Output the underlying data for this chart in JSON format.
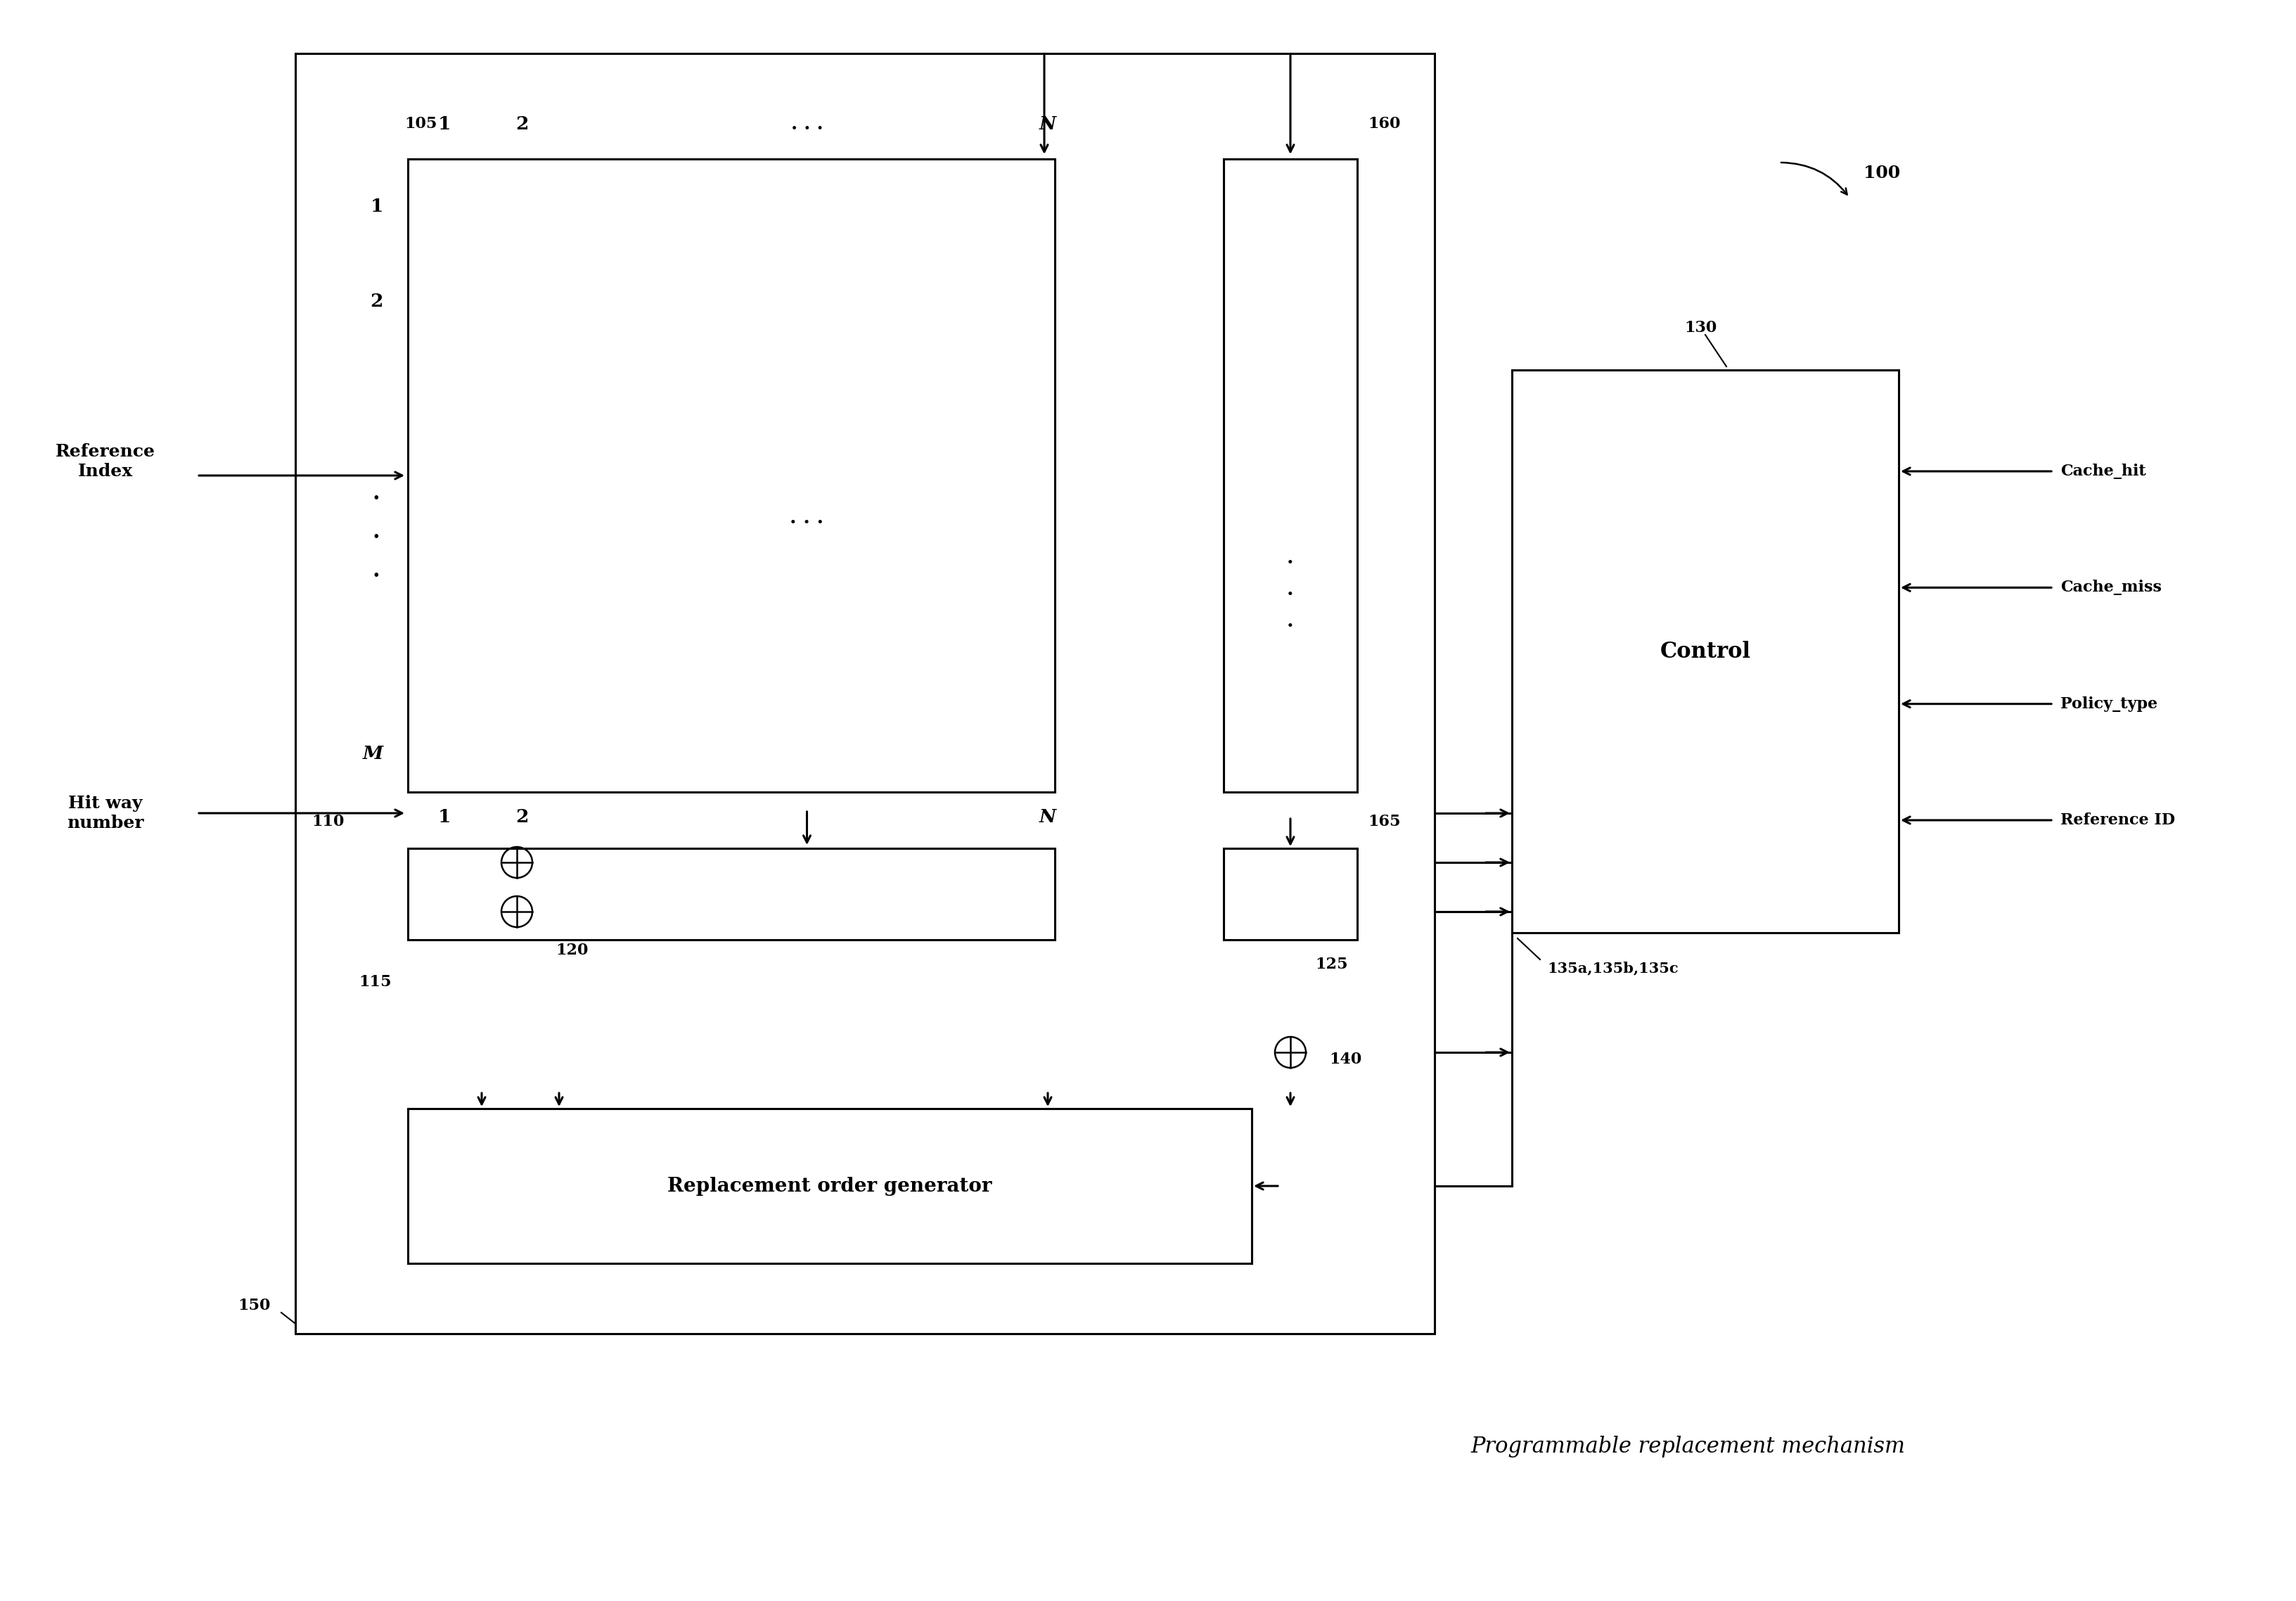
{
  "fig_width": 32.65,
  "fig_height": 22.76,
  "bg_color": "#ffffff",
  "line_color": "#000000",
  "text_color": "#000000",
  "font_family": "serif",
  "title_text": "Programmable replacement mechanism",
  "right_labels": [
    "Cache_hit",
    "Cache_miss",
    "Policy_type",
    "Reference ID"
  ],
  "label_105": "105",
  "label_160": "160",
  "label_110": "110",
  "label_115": "115",
  "label_120": "120",
  "label_125": "125",
  "label_130": "130",
  "label_135": "135a,135b,135c",
  "label_140": "140",
  "label_150": "150",
  "label_165": "165",
  "label_100": "100",
  "control_text": "Control",
  "rog_text": "Replacement order generator",
  "ref_index_text": "Reference\nIndex",
  "hit_way_text": "Hit way\nnumber"
}
